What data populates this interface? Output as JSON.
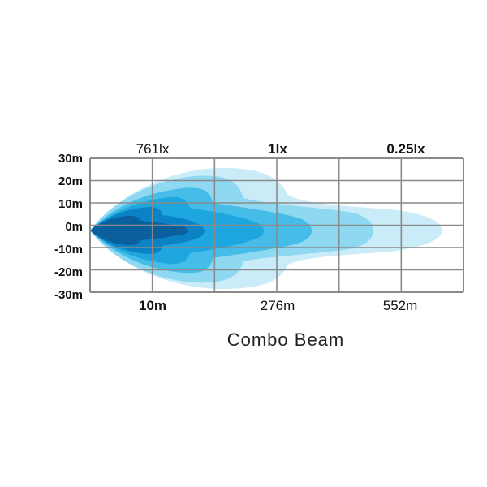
{
  "chart_data": {
    "type": "heatmap",
    "title": "Combo Beam",
    "y_ticks": [
      "30m",
      "20m",
      "10m",
      "0m",
      "-10m",
      "-20m",
      "-30m"
    ],
    "top_labels": [
      {
        "text": "761lx",
        "bold": false
      },
      {
        "text": "1lx",
        "bold": true
      },
      {
        "text": "0.25lx",
        "bold": true
      }
    ],
    "bottom_labels": [
      {
        "text": "10m",
        "bold": true
      },
      {
        "text": "276m",
        "bold": false
      },
      {
        "text": "552m",
        "bold": false
      }
    ],
    "ylim": [
      -30,
      30
    ],
    "grid": true,
    "zone_colors": [
      "#c9ecf8",
      "#8fd8f2",
      "#45bde8",
      "#1ea6df",
      "#0c82c6",
      "#0a5f9d"
    ]
  }
}
